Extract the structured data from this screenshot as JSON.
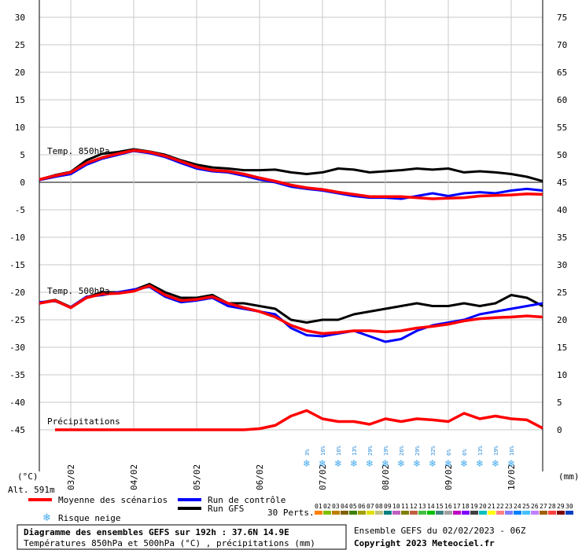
{
  "chart_data": {
    "type": "line",
    "title": "Diagramme des ensembles GEFS sur 192h : 37.6N 14.9E",
    "subtitle": "Températures 850hPa et 500hPa (°C) , précipitations (mm)",
    "left_unit": "(°C)",
    "right_unit": "(mm)",
    "altitude": "Alt. 591m",
    "left_ticks": [
      30,
      25,
      20,
      15,
      10,
      5,
      0,
      -5,
      -10,
      -15,
      -20,
      -25,
      -30,
      -35,
      -40,
      -45
    ],
    "right_ticks": [
      75,
      70,
      65,
      60,
      55,
      50,
      45,
      40,
      35,
      30,
      25,
      20,
      15,
      10,
      5,
      0
    ],
    "ylim_temp": [
      -45,
      30
    ],
    "ylim_precip": [
      0,
      75
    ],
    "x_labels": [
      "03/02",
      "04/02",
      "05/02",
      "06/02",
      "07/02",
      "08/02",
      "09/02",
      "10/02"
    ],
    "panel_labels": [
      "Temp. 850hPa",
      "Temp. 500hPa",
      "Précipitations"
    ],
    "x": [
      0,
      6,
      12,
      18,
      24,
      30,
      36,
      42,
      48,
      54,
      60,
      66,
      72,
      78,
      84,
      90,
      96,
      102,
      108,
      114,
      120,
      126,
      132,
      138,
      144,
      150,
      156,
      162,
      168,
      174,
      180,
      186,
      192
    ],
    "series": [
      {
        "name": "Moyenne des scénarios",
        "color": "#ff0000",
        "group": "t850",
        "values": [
          0.5,
          1.2,
          1.8,
          3.5,
          4.5,
          5.2,
          5.8,
          5.5,
          4.8,
          3.8,
          2.8,
          2.2,
          2.0,
          1.5,
          0.8,
          0.2,
          -0.5,
          -1.0,
          -1.3,
          -1.8,
          -2.2,
          -2.6,
          -2.6,
          -2.6,
          -2.8,
          -3.0,
          -2.9,
          -2.8,
          -2.5,
          -2.4,
          -2.3,
          -2.1,
          -2.2
        ]
      },
      {
        "name": "Moyenne des scénarios",
        "color": "#ff0000",
        "group": "t500",
        "values": [
          -22.0,
          -21.5,
          -22.8,
          -21.0,
          -20.3,
          -20.2,
          -19.8,
          -18.8,
          -20.5,
          -21.5,
          -21.3,
          -20.8,
          -22.0,
          -22.8,
          -23.5,
          -24.5,
          -26.0,
          -27.0,
          -27.5,
          -27.3,
          -27.0,
          -27.0,
          -27.2,
          -27.0,
          -26.5,
          -26.2,
          -25.8,
          -25.2,
          -24.8,
          -24.6,
          -24.5,
          -24.3,
          -24.5
        ]
      },
      {
        "name": "Moyenne des scénarios",
        "color": "#ff0000",
        "group": "precip",
        "values": [
          null,
          0,
          0,
          0,
          0,
          0,
          0,
          0,
          0,
          0,
          0,
          0,
          0,
          0,
          0.2,
          0.8,
          2.5,
          3.5,
          2.0,
          1.5,
          1.5,
          1.0,
          2.0,
          1.5,
          2.0,
          1.8,
          1.5,
          3.0,
          2.0,
          2.5,
          2.0,
          1.8,
          0.3
        ]
      },
      {
        "name": "Run de contrôle",
        "color": "#0000ff",
        "group": "t850",
        "values": [
          0.4,
          1.0,
          1.5,
          3.2,
          4.3,
          5.0,
          5.7,
          5.3,
          4.6,
          3.5,
          2.5,
          2.0,
          1.8,
          1.2,
          0.5,
          0.0,
          -0.8,
          -1.2,
          -1.5,
          -2.0,
          -2.5,
          -2.8,
          -2.8,
          -3.0,
          -2.5,
          -2.0,
          -2.5,
          -2.0,
          -1.8,
          -2.0,
          -1.5,
          -1.2,
          -1.5
        ]
      },
      {
        "name": "Run de contrôle",
        "color": "#0000ff",
        "group": "t500",
        "values": [
          -21.8,
          -21.6,
          -22.7,
          -20.8,
          -20.5,
          -20.0,
          -19.5,
          -19.0,
          -20.8,
          -21.8,
          -21.5,
          -21.0,
          -22.5,
          -23.0,
          -23.5,
          -24.0,
          -26.5,
          -27.8,
          -28.0,
          -27.5,
          -27.0,
          -28.0,
          -29.0,
          -28.5,
          -27.0,
          -26.0,
          -25.5,
          -25.0,
          -24.0,
          -23.5,
          -23.0,
          -22.5,
          -22.0
        ]
      },
      {
        "name": "Run GFS",
        "color": "#000000",
        "group": "t850",
        "values": [
          0.5,
          1.3,
          1.9,
          4.0,
          5.2,
          5.5,
          6.0,
          5.6,
          5.0,
          4.0,
          3.2,
          2.7,
          2.5,
          2.2,
          2.2,
          2.3,
          1.8,
          1.5,
          1.8,
          2.5,
          2.3,
          1.8,
          2.0,
          2.2,
          2.5,
          2.3,
          2.5,
          1.8,
          2.0,
          1.8,
          1.5,
          1.0,
          0.2
        ]
      },
      {
        "name": "Run GFS",
        "color": "#000000",
        "group": "t500",
        "values": [
          -21.9,
          -21.4,
          -22.7,
          -20.9,
          -20.0,
          -20.0,
          -19.6,
          -18.5,
          -20.0,
          -21.0,
          -21.0,
          -20.5,
          -22.0,
          -22.0,
          -22.5,
          -23.0,
          -25.0,
          -25.5,
          -25.0,
          -25.0,
          -24.0,
          -23.5,
          -23.0,
          -22.5,
          -22.0,
          -22.5,
          -22.5,
          -22.0,
          -22.5,
          -22.0,
          -20.5,
          -21.0,
          -22.5
        ]
      }
    ],
    "snow_risk": [
      {
        "x": 102,
        "label": "3%"
      },
      {
        "x": 108,
        "label": "16%"
      },
      {
        "x": 114,
        "label": "16%"
      },
      {
        "x": 120,
        "label": "13%"
      },
      {
        "x": 126,
        "label": "29%"
      },
      {
        "x": 132,
        "label": "19%"
      },
      {
        "x": 138,
        "label": "26%"
      },
      {
        "x": 144,
        "label": "29%"
      },
      {
        "x": 150,
        "label": "32%"
      },
      {
        "x": 156,
        "label": "6%"
      },
      {
        "x": 162,
        "label": "6%"
      },
      {
        "x": 168,
        "label": "13%"
      },
      {
        "x": 174,
        "label": "19%"
      },
      {
        "x": 180,
        "label": "16%"
      }
    ],
    "legend": {
      "mean": "Moyenne des scénarios",
      "control": "Run de contrôle",
      "gfs": "Run GFS",
      "snow": "Risque neige",
      "perts": "30 Perts.",
      "pert_labels": [
        "01",
        "02",
        "03",
        "04",
        "05",
        "06",
        "07",
        "08",
        "09",
        "10",
        "11",
        "12",
        "13",
        "14",
        "15",
        "16",
        "17",
        "18",
        "19",
        "20",
        "21",
        "22",
        "23",
        "24",
        "25",
        "26",
        "27",
        "28",
        "29",
        "30"
      ],
      "pert_colors": [
        "#ff8000",
        "#80c000",
        "#c08000",
        "#806000",
        "#408000",
        "#a0a000",
        "#e0e000",
        "#c0c080",
        "#008080",
        "#c060c0",
        "#808000",
        "#c06040",
        "#40c040",
        "#00c000",
        "#408080",
        "#a0a0a0",
        "#c000c0",
        "#8000ff",
        "#404040",
        "#00c0c0",
        "#ffff00",
        "#ff8080",
        "#8080ff",
        "#0080ff",
        "#40c0ff",
        "#c080ff",
        "#a06000",
        "#ff4040",
        "#800000",
        "#0040c0"
      ]
    },
    "footer": {
      "ensemble": "Ensemble GEFS du 02/02/2023 - 06Z",
      "copyright": "Copyright 2023 Meteociel.fr"
    },
    "grid": true
  }
}
